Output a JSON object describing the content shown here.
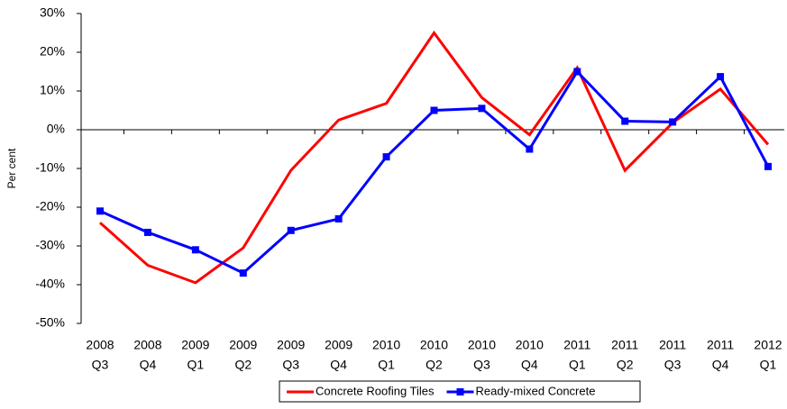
{
  "chart_data": {
    "type": "line",
    "ylabel": "Per cent",
    "categories": [
      [
        "2008",
        "Q3"
      ],
      [
        "2008",
        "Q4"
      ],
      [
        "2009",
        "Q1"
      ],
      [
        "2009",
        "Q2"
      ],
      [
        "2009",
        "Q3"
      ],
      [
        "2009",
        "Q4"
      ],
      [
        "2010",
        "Q1"
      ],
      [
        "2010",
        "Q2"
      ],
      [
        "2010",
        "Q3"
      ],
      [
        "2010",
        "Q4"
      ],
      [
        "2011",
        "Q1"
      ],
      [
        "2011",
        "Q2"
      ],
      [
        "2011",
        "Q3"
      ],
      [
        "2011",
        "Q4"
      ],
      [
        "2012",
        "Q1"
      ]
    ],
    "series": [
      {
        "name": "Concrete Roofing Tiles",
        "color": "#ff0000",
        "marker": false,
        "values": [
          -24,
          -35,
          -39.5,
          -30.5,
          -10.5,
          2.5,
          6.8,
          25,
          8.3,
          -1.3,
          16,
          -10.5,
          1.8,
          10.5,
          -3.8
        ]
      },
      {
        "name": "Ready-mixed Concrete",
        "color": "#0000ff",
        "marker": true,
        "values": [
          -21,
          -26.5,
          -31,
          -37,
          -26,
          -23,
          -7,
          5,
          5.5,
          -5,
          15,
          2.2,
          2,
          13.7,
          -9.5
        ]
      }
    ],
    "ylim": [
      -50,
      30
    ],
    "yticks": [
      {
        "value": -50,
        "label": "-50%"
      },
      {
        "value": -40,
        "label": "-40%"
      },
      {
        "value": -30,
        "label": "-30%"
      },
      {
        "value": -20,
        "label": "-20%"
      },
      {
        "value": -10,
        "label": "-10%"
      },
      {
        "value": 0,
        "label": "0%"
      },
      {
        "value": 10,
        "label": "10%"
      },
      {
        "value": 20,
        "label": "20%"
      },
      {
        "value": 30,
        "label": "30%"
      }
    ],
    "legend": "bottom"
  }
}
